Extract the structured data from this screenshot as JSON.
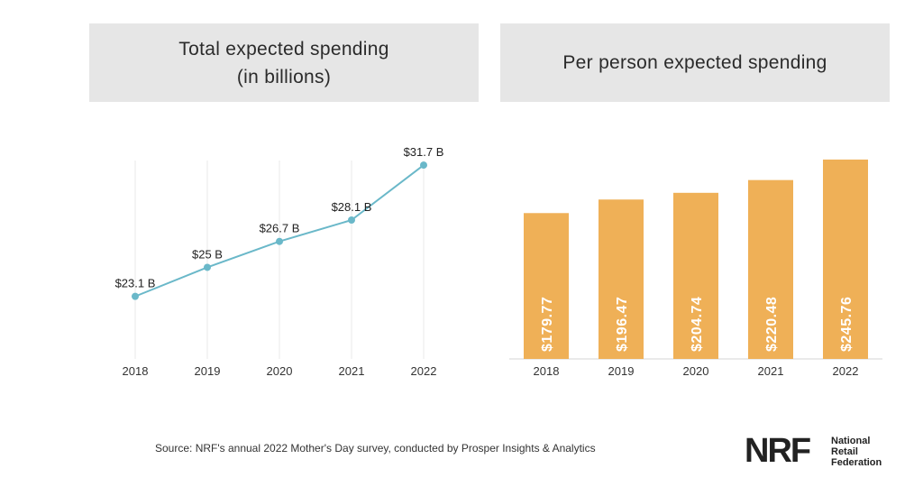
{
  "chart_data": [
    {
      "type": "line",
      "title_lines": [
        "Total expected spending",
        "(in billions)"
      ],
      "categories": [
        "2018",
        "2019",
        "2020",
        "2021",
        "2022"
      ],
      "values": [
        23.1,
        25,
        26.7,
        28.1,
        31.7
      ],
      "data_labels": [
        "$23.1 B",
        "$25 B",
        "$26.7 B",
        "$28.1 B",
        "$31.7 B"
      ],
      "ylim": [
        19,
        32
      ],
      "grid": "vertical",
      "color": "#6ab8c9"
    },
    {
      "type": "bar",
      "title": "Per person expected spending",
      "categories": [
        "2018",
        "2019",
        "2020",
        "2021",
        "2022"
      ],
      "values": [
        179.77,
        196.47,
        204.74,
        220.48,
        245.76
      ],
      "data_labels": [
        "$179.77",
        "$196.47",
        "$204.74",
        "$220.48",
        "$245.76"
      ],
      "ylim": [
        0,
        259
      ],
      "color": "#efb057"
    }
  ],
  "footer": {
    "source": "Source: NRF's annual 2022 Mother's Day survey, conducted by Prosper Insights & Analytics",
    "logo_mark": "NRF",
    "logo_lines": [
      "National",
      "Retail",
      "Federation"
    ]
  }
}
